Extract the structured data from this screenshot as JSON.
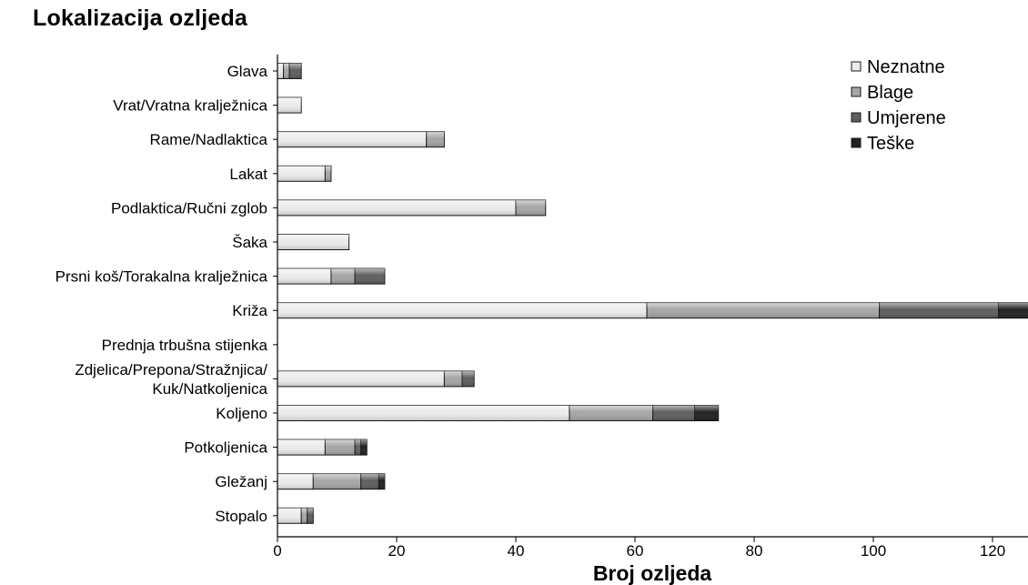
{
  "chart_data": {
    "type": "bar",
    "orientation": "horizontal",
    "stacked": true,
    "title": "Lokalizacija ozljeda",
    "xlabel": "Broj ozljeda",
    "ylabel": "",
    "xlim": [
      0,
      140
    ],
    "x_ticks": [
      0,
      20,
      40,
      60,
      80,
      100,
      120
    ],
    "grid": false,
    "legend_position": "top-right",
    "categories": [
      [
        "Glava"
      ],
      [
        "Vrat/Vratna kralježnica"
      ],
      [
        "Rame/Nadlaktica"
      ],
      [
        "Lakat"
      ],
      [
        "Podlaktica/Ručni zglob"
      ],
      [
        "Šaka"
      ],
      [
        "Prsni koš/Torakalna kralježnica"
      ],
      [
        "Križa"
      ],
      [
        "Prednja trbušna stijenka"
      ],
      [
        "Zdjelica/Prepona/Stražnjica/",
        "Kuk/Natkoljenica"
      ],
      [
        "Koljeno"
      ],
      [
        "Potkoljenica"
      ],
      [
        "Gležanj"
      ],
      [
        "Stopalo"
      ]
    ],
    "series": [
      {
        "name": "Neznatne",
        "color": "#ebebeb",
        "values": [
          1,
          4,
          25,
          8,
          40,
          12,
          9,
          62,
          0,
          28,
          49,
          8,
          6,
          4
        ]
      },
      {
        "name": "Blage",
        "color": "#a6a6a6",
        "values": [
          1,
          0,
          3,
          1,
          5,
          0,
          4,
          39,
          0,
          3,
          14,
          5,
          8,
          1
        ]
      },
      {
        "name": "Umjerene",
        "color": "#5f5f5f",
        "values": [
          2,
          0,
          0,
          0,
          0,
          0,
          5,
          20,
          0,
          2,
          7,
          1,
          3,
          1
        ]
      },
      {
        "name": "Teške",
        "color": "#222222",
        "values": [
          0,
          0,
          0,
          0,
          0,
          0,
          0,
          6,
          0,
          0,
          4,
          1,
          1,
          0
        ]
      }
    ]
  }
}
